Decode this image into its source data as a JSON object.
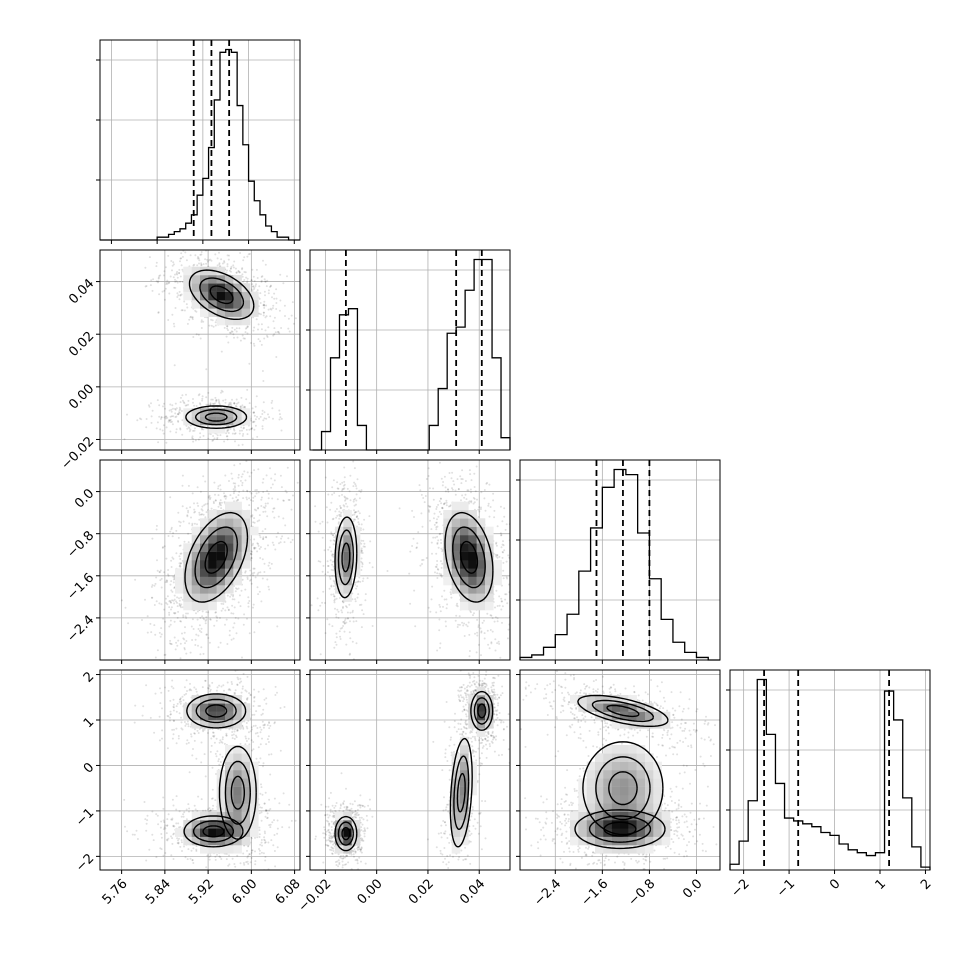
{
  "chart_data": {
    "type": "corner",
    "parameters": 4,
    "panels": [
      {
        "row": 0,
        "col": 0,
        "type": "histogram",
        "bins": [
          5.74,
          5.75,
          5.76,
          5.77,
          5.78,
          5.79,
          5.8,
          5.81,
          5.82,
          5.83,
          5.84,
          5.85,
          5.86,
          5.87,
          5.88,
          5.89,
          5.9,
          5.91,
          5.92,
          5.93,
          5.94,
          5.95,
          5.96,
          5.97,
          5.98,
          5.99,
          6.0,
          6.01,
          6.02,
          6.03,
          6.04,
          6.05,
          6.06,
          6.07,
          6.08,
          6.09
        ],
        "counts": [
          0,
          0,
          0,
          0,
          0,
          0,
          0,
          0,
          0,
          0,
          1,
          1,
          2,
          3,
          4,
          6,
          9,
          16,
          22,
          33,
          50,
          67,
          68,
          67,
          48,
          34,
          21,
          14,
          9,
          5,
          3,
          1,
          1,
          0,
          0
        ],
        "quantiles": [
          5.904,
          5.935,
          5.966
        ],
        "xlim": [
          5.74,
          6.09
        ]
      },
      {
        "row": 1,
        "col": 1,
        "type": "histogram",
        "bins": [
          -0.025,
          -0.0215,
          -0.018,
          -0.0145,
          -0.011,
          -0.0075,
          -0.004,
          -0.0005,
          0.003,
          0.0065,
          0.01,
          0.0135,
          0.017,
          0.0205,
          0.024,
          0.0275,
          0.031,
          0.0345,
          0.038,
          0.0415,
          0.045,
          0.0485,
          0.052
        ],
        "counts": [
          0,
          3,
          15,
          22,
          23,
          4,
          0,
          0,
          0,
          0,
          0,
          0,
          0,
          4,
          10,
          19,
          20,
          26,
          31,
          31,
          15,
          2
        ],
        "quantiles": [
          -0.012,
          0.031,
          0.041
        ],
        "xlim": [
          -0.026,
          0.052
        ]
      },
      {
        "row": 2,
        "col": 2,
        "type": "histogram",
        "bins": [
          -3.0,
          -2.8,
          -2.6,
          -2.4,
          -2.2,
          -2.0,
          -1.8,
          -1.6,
          -1.4,
          -1.2,
          -1.0,
          -0.8,
          -0.6,
          -0.4,
          -0.2,
          0.0,
          0.2,
          0.4
        ],
        "counts": [
          1,
          2,
          5,
          10,
          18,
          35,
          52,
          68,
          75,
          73,
          50,
          32,
          16,
          7,
          3,
          1,
          0
        ],
        "quantiles": [
          -1.7,
          -1.25,
          -0.8
        ],
        "xlim": [
          -3.0,
          0.4
        ]
      },
      {
        "row": 3,
        "col": 3,
        "type": "histogram",
        "bins": [
          -2.3,
          -2.1,
          -1.9,
          -1.7,
          -1.5,
          -1.3,
          -1.1,
          -0.9,
          -0.7,
          -0.5,
          -0.3,
          -0.1,
          0.1,
          0.3,
          0.5,
          0.7,
          0.9,
          1.1,
          1.3,
          1.5,
          1.7,
          1.9,
          2.1
        ],
        "counts": [
          2,
          10,
          24,
          66,
          47,
          30,
          18,
          17,
          16,
          15,
          13,
          12,
          9,
          7,
          6,
          5,
          6,
          62,
          52,
          25,
          8,
          1
        ],
        "quantiles": [
          -1.55,
          -0.8,
          1.2
        ],
        "xlim": [
          -2.3,
          2.1
        ]
      },
      {
        "row": 1,
        "col": 0,
        "type": "2d",
        "xlim": [
          5.72,
          6.09
        ],
        "ylim": [
          -0.024,
          0.052
        ],
        "clusters": [
          {
            "x": 5.945,
            "y": 0.035,
            "sx": 0.035,
            "sy": 0.0055,
            "rho": -0.45,
            "weight": 0.6
          },
          {
            "x": 5.935,
            "y": -0.0115,
            "sx": 0.033,
            "sy": 0.0025,
            "rho": 0.0,
            "weight": 0.4
          }
        ]
      },
      {
        "row": 2,
        "col": 0,
        "type": "2d",
        "xlim": [
          5.72,
          6.09
        ],
        "ylim": [
          -3.2,
          0.6
        ],
        "clusters": [
          {
            "x": 5.935,
            "y": -1.25,
            "sx": 0.034,
            "sy": 0.5,
            "rho": 0.45,
            "weight": 1.0
          }
        ]
      },
      {
        "row": 2,
        "col": 1,
        "type": "2d",
        "xlim": [
          -0.026,
          0.052
        ],
        "ylim": [
          -3.2,
          0.6
        ],
        "clusters": [
          {
            "x": -0.012,
            "y": -1.25,
            "sx": 0.0025,
            "sy": 0.45,
            "rho": 0.1,
            "weight": 0.4
          },
          {
            "x": 0.036,
            "y": -1.25,
            "sx": 0.0055,
            "sy": 0.5,
            "rho": -0.3,
            "weight": 0.6
          }
        ]
      },
      {
        "row": 3,
        "col": 0,
        "type": "2d",
        "xlim": [
          5.72,
          6.09
        ],
        "ylim": [
          -2.3,
          2.1
        ],
        "clusters": [
          {
            "x": 5.935,
            "y": 1.2,
            "sx": 0.032,
            "sy": 0.22,
            "rho": 0.0,
            "weight": 0.35
          },
          {
            "x": 5.93,
            "y": -1.45,
            "sx": 0.032,
            "sy": 0.2,
            "rho": 0.0,
            "weight": 0.4
          },
          {
            "x": 5.975,
            "y": -0.6,
            "sx": 0.02,
            "sy": 0.6,
            "rho": 0.0,
            "weight": 0.25
          }
        ]
      },
      {
        "row": 3,
        "col": 1,
        "type": "2d",
        "xlim": [
          -0.026,
          0.052
        ],
        "ylim": [
          -2.3,
          2.1
        ],
        "clusters": [
          {
            "x": -0.012,
            "y": -1.5,
            "sx": 0.0025,
            "sy": 0.22,
            "rho": 0.0,
            "weight": 0.4
          },
          {
            "x": 0.041,
            "y": 1.2,
            "sx": 0.0025,
            "sy": 0.25,
            "rho": 0.0,
            "weight": 0.35
          },
          {
            "x": 0.033,
            "y": -0.6,
            "sx": 0.0025,
            "sy": 0.7,
            "rho": 0.3,
            "weight": 0.25
          }
        ]
      },
      {
        "row": 3,
        "col": 2,
        "type": "2d",
        "xlim": [
          -3.0,
          0.4
        ],
        "ylim": [
          -2.3,
          2.1
        ],
        "clusters": [
          {
            "x": -1.25,
            "y": 1.2,
            "sx": 0.45,
            "sy": 0.2,
            "rho": -0.6,
            "weight": 0.35
          },
          {
            "x": -1.3,
            "y": -1.4,
            "sx": 0.45,
            "sy": 0.25,
            "rho": 0.0,
            "weight": 0.4
          },
          {
            "x": -1.25,
            "y": -0.5,
            "sx": 0.4,
            "sy": 0.6,
            "rho": 0.0,
            "weight": 0.25
          }
        ]
      }
    ],
    "x_ticks": [
      [
        "5.76",
        "5.84",
        "5.92",
        "6.00",
        "6.08"
      ],
      [
        "−0.02",
        "0.00",
        "0.02",
        "0.04"
      ],
      [
        "−2.4",
        "−1.6",
        "−0.8",
        "0.0"
      ],
      [
        "−2",
        "−1",
        "0",
        "1",
        "2"
      ]
    ],
    "x_tick_values": [
      [
        5.76,
        5.84,
        5.92,
        6.0,
        6.08
      ],
      [
        -0.02,
        0.0,
        0.02,
        0.04
      ],
      [
        -2.4,
        -1.6,
        -0.8,
        0.0
      ],
      [
        -2,
        -1,
        0,
        1,
        2
      ]
    ],
    "y_ticks": [
      null,
      [
        "−0.02",
        "0.00",
        "0.02",
        "0.04"
      ],
      [
        "−2.4",
        "−1.6",
        "−0.8",
        "0.0"
      ],
      [
        "−2",
        "−1",
        "0",
        "1",
        "2"
      ]
    ],
    "y_tick_values": [
      null,
      [
        -0.02,
        0.0,
        0.02,
        0.04
      ],
      [
        -2.4,
        -1.6,
        -0.8,
        0.0
      ],
      [
        -2,
        -1,
        0,
        1,
        2
      ]
    ],
    "grid": true,
    "colors": {
      "line": "#000000",
      "points": "#000000",
      "grid": "#b0b0b0"
    }
  }
}
